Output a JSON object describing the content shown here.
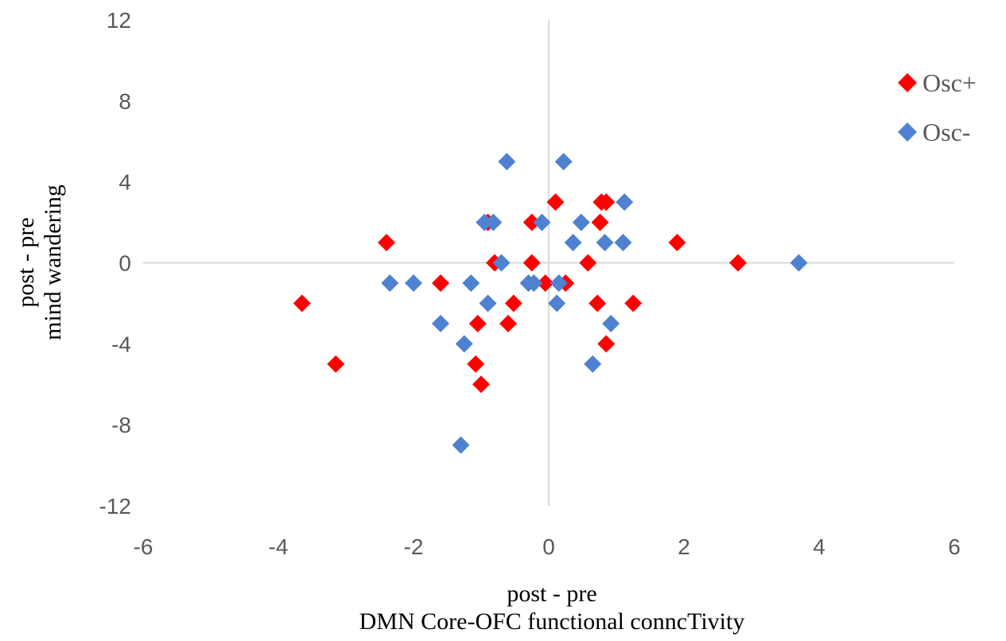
{
  "chart_data": {
    "type": "scatter",
    "title": "",
    "xlabel": [
      "post - pre",
      "DMN Core-OFC functional conncTivity"
    ],
    "ylabel": [
      "post - pre",
      "mind wandering"
    ],
    "xlim": [
      -6,
      6
    ],
    "ylim": [
      -12,
      12
    ],
    "xticks": [
      -6,
      -4,
      -2,
      0,
      2,
      4,
      6
    ],
    "yticks": [
      -12,
      -8,
      -4,
      0,
      4,
      8,
      12
    ],
    "xtick_labels": [
      "-6",
      "-4",
      "-2",
      "0",
      "2",
      "4",
      "6"
    ],
    "ytick_labels": [
      "-12",
      "-8",
      "-4",
      "0",
      "4",
      "8",
      "12"
    ],
    "grid": false,
    "zero_lines": true,
    "legend_position": "top-right",
    "marker": "diamond",
    "series": [
      {
        "name": "Osc+",
        "color": "#ff0000",
        "points": [
          [
            -3.65,
            -2
          ],
          [
            -3.15,
            -5
          ],
          [
            -2.4,
            1
          ],
          [
            -1.6,
            -1
          ],
          [
            -1.05,
            -3
          ],
          [
            -1.08,
            -5
          ],
          [
            -1.0,
            -6
          ],
          [
            -0.9,
            2
          ],
          [
            -0.8,
            0
          ],
          [
            -0.6,
            -3
          ],
          [
            -0.52,
            -2
          ],
          [
            -0.25,
            2
          ],
          [
            -0.25,
            0
          ],
          [
            -0.05,
            -1
          ],
          [
            0.1,
            3
          ],
          [
            0.25,
            -1
          ],
          [
            0.58,
            0
          ],
          [
            0.72,
            -2
          ],
          [
            0.76,
            2
          ],
          [
            0.78,
            3
          ],
          [
            0.85,
            3
          ],
          [
            0.85,
            -4
          ],
          [
            1.25,
            -2
          ],
          [
            1.9,
            1
          ],
          [
            2.8,
            0
          ]
        ]
      },
      {
        "name": "Osc-",
        "color": "#4f81d1",
        "points": [
          [
            -2.35,
            -1
          ],
          [
            -2.0,
            -1
          ],
          [
            -1.6,
            -3
          ],
          [
            -1.3,
            -9
          ],
          [
            -1.25,
            -4
          ],
          [
            -1.15,
            -1
          ],
          [
            -0.95,
            2
          ],
          [
            -0.9,
            -2
          ],
          [
            -0.82,
            2
          ],
          [
            -0.7,
            0
          ],
          [
            -0.62,
            5
          ],
          [
            -0.3,
            -1
          ],
          [
            -0.22,
            -1
          ],
          [
            -0.1,
            2
          ],
          [
            0.12,
            -2
          ],
          [
            0.15,
            -1
          ],
          [
            0.22,
            5
          ],
          [
            0.36,
            1
          ],
          [
            0.48,
            2
          ],
          [
            0.65,
            -5
          ],
          [
            0.83,
            1
          ],
          [
            0.92,
            -3
          ],
          [
            1.1,
            1
          ],
          [
            1.12,
            3
          ],
          [
            3.7,
            0
          ]
        ]
      }
    ]
  }
}
